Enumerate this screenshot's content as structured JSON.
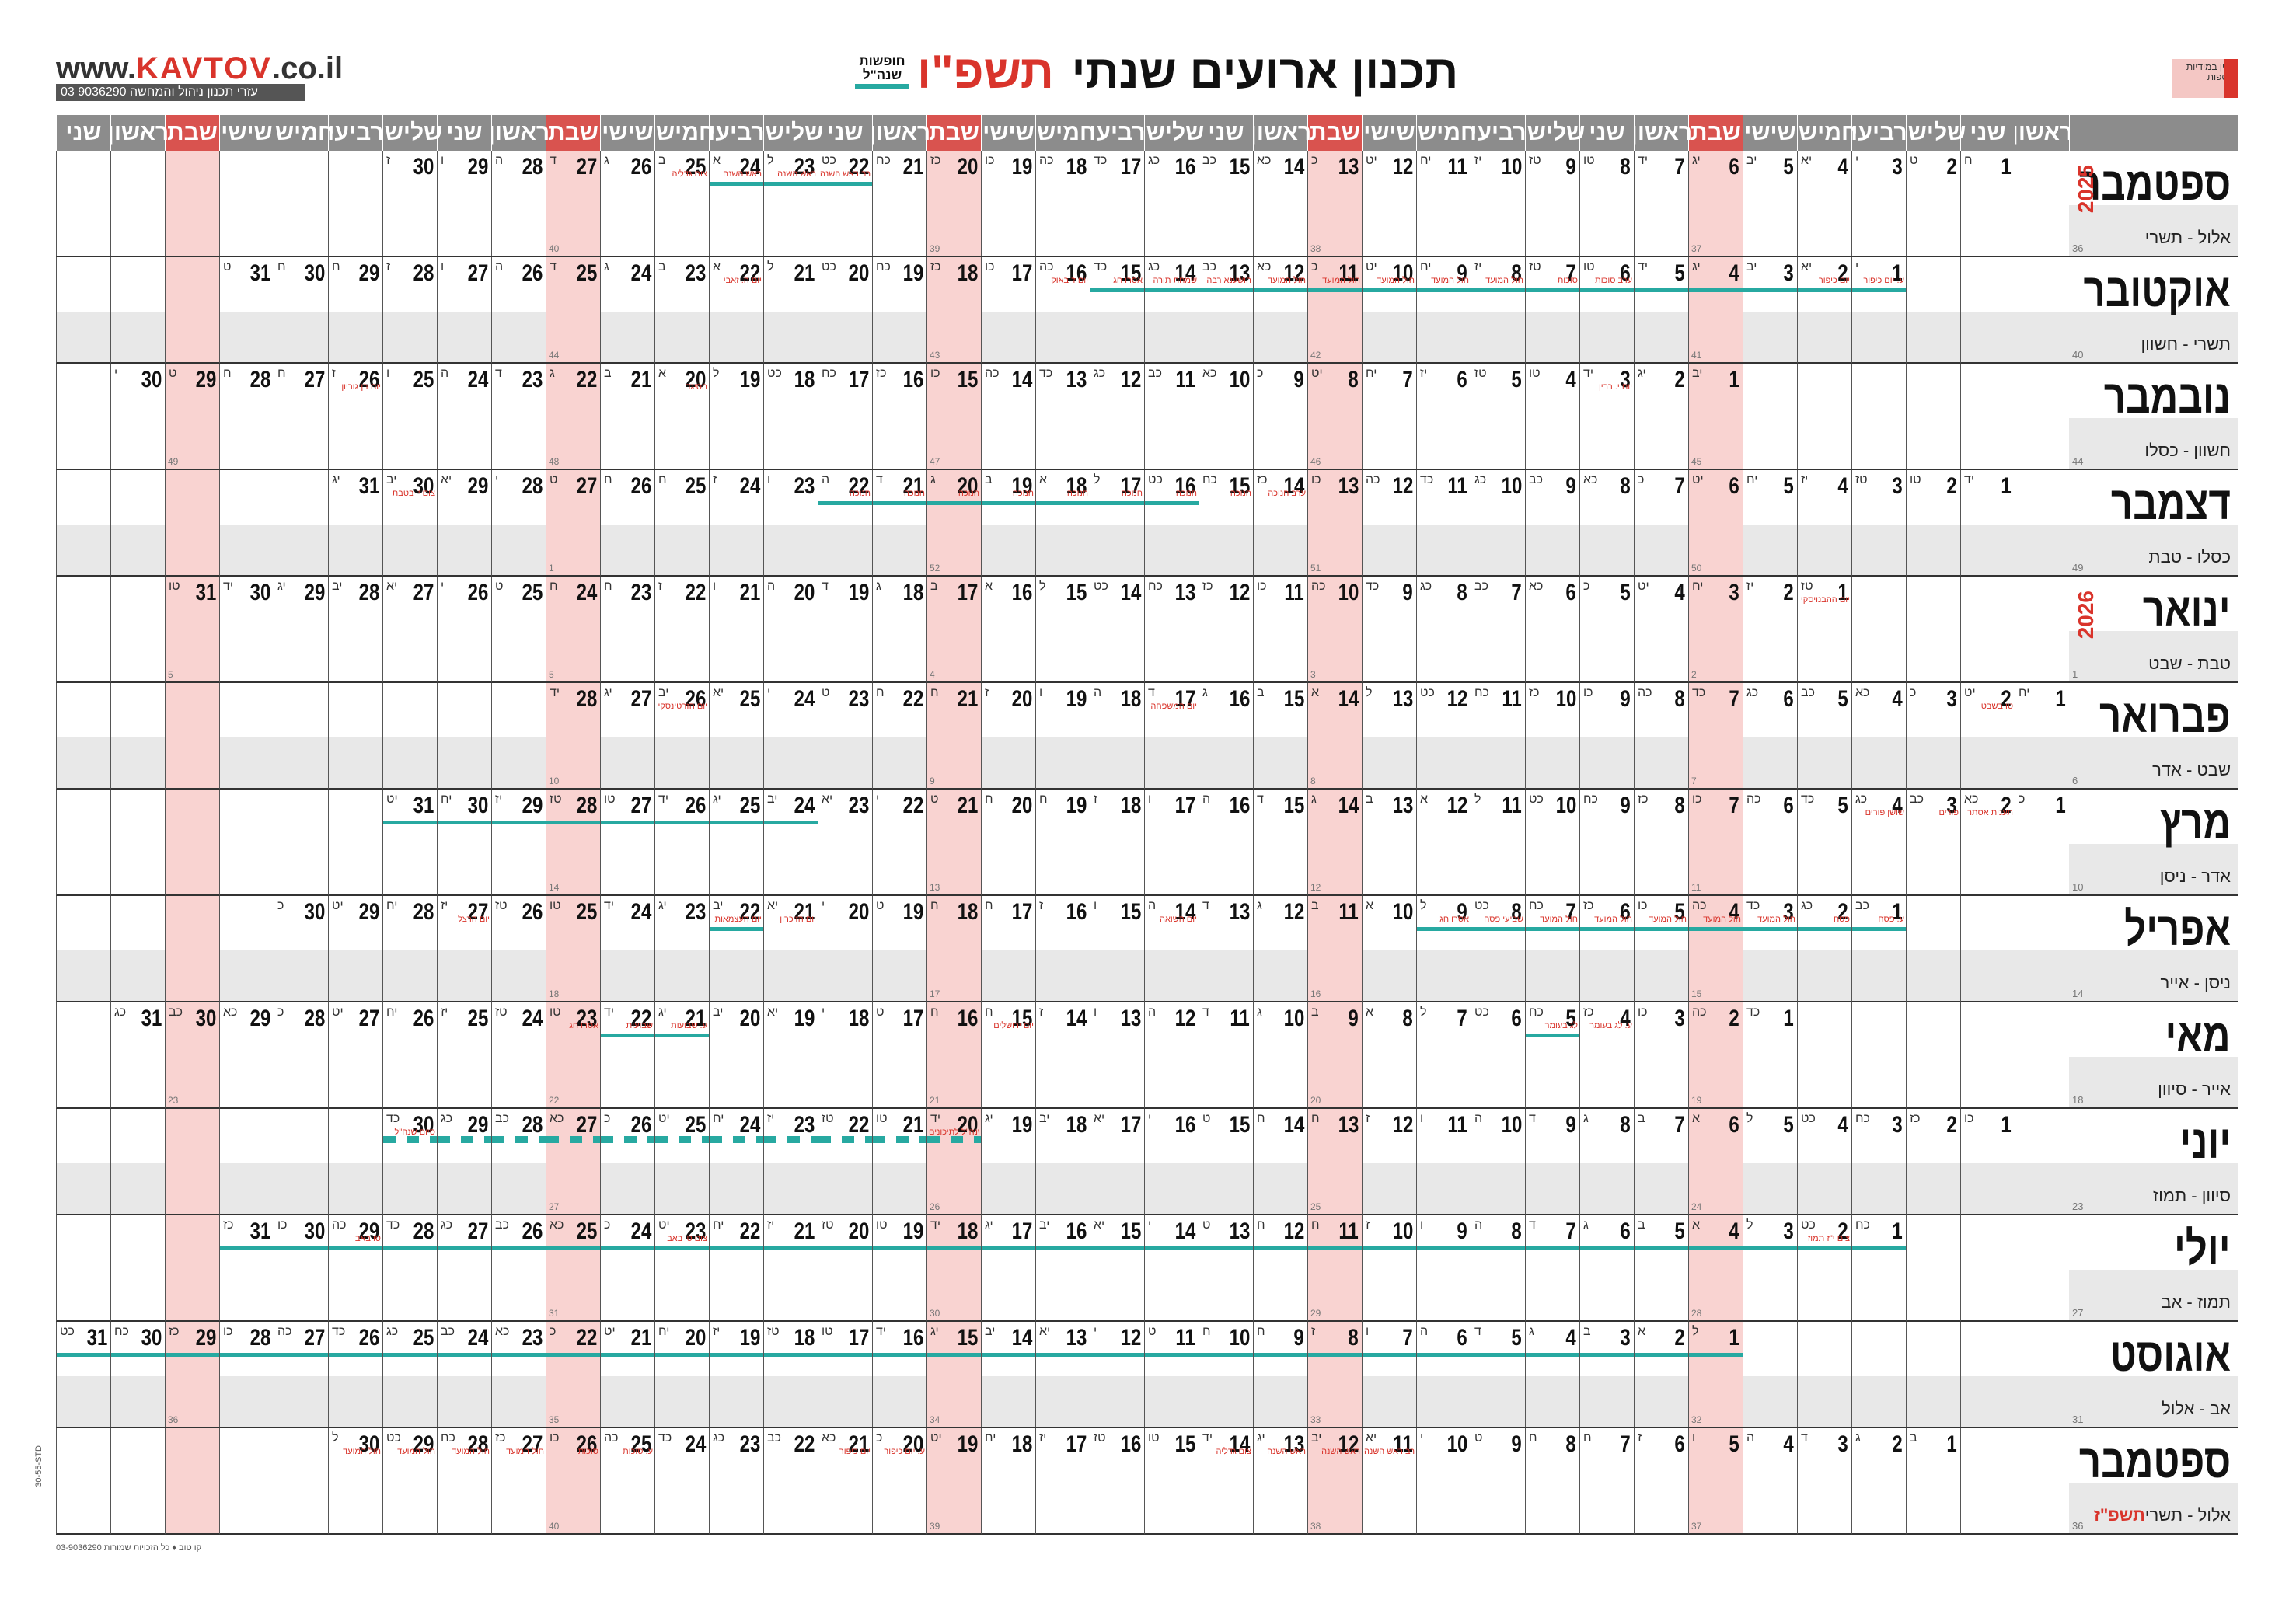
{
  "header": {
    "title": "תכנון ארועים שנתי",
    "year_label": "תשפ\"ו",
    "legend_label": "חופשות שנה\"ל",
    "logo_prefix": "www.",
    "logo_brand": "KAVTOV",
    "logo_suffix": ".co.il",
    "phone_text": "03 9036290 עזרי תכנון ניהול והמחשה",
    "publisher_text": "זמין במידיות נוספות",
    "side_code": "30-55-STD",
    "footer_text": "03-9036290 קו טוב ♦ כל הזכויות שמורות"
  },
  "colors": {
    "accent": "#27a9a1",
    "shabbat": "#f9d3d1",
    "header_gray": "#8c8c8c",
    "header_shabbat": "#d9534f",
    "event_red": "#d9342b"
  },
  "weekdays": [
    "ראשון",
    "שני",
    "שלישי",
    "רביעי",
    "חמישי",
    "שישי",
    "שבת",
    "ראשון",
    "שני",
    "שלישי",
    "רביעי",
    "חמישי",
    "שישי",
    "שבת",
    "ראשון",
    "שני",
    "שלישי",
    "רביעי",
    "חמישי",
    "שישי",
    "שבת",
    "ראשון",
    "שני",
    "שלישי",
    "רביעי",
    "חמישי",
    "שישי",
    "שבת",
    "ראשון",
    "שני",
    "שלישי",
    "רביעי",
    "חמישי",
    "שישי",
    "שבת",
    "ראשון",
    "שני"
  ],
  "months": [
    {
      "name": "ספטמבר",
      "hebrew": "אלול - תשרי",
      "year_mark": "2025",
      "start": 1,
      "days": 30,
      "week_num": "36",
      "weeks": {
        "6": "37",
        "13": "38",
        "20": "39",
        "27": "40"
      }
    },
    {
      "name": "אוקטובר",
      "hebrew": "תשרי - חשוון",
      "start": 3,
      "days": 31,
      "week_num": "40",
      "weeks": {
        "4": "41",
        "11": "42",
        "18": "43",
        "25": "44"
      }
    },
    {
      "name": "נובמבר",
      "hebrew": "חשוון - כסלו",
      "start": 6,
      "days": 30,
      "week_num": "44",
      "weeks": {
        "1": "45",
        "8": "46",
        "15": "47",
        "22": "48",
        "29": "49"
      }
    },
    {
      "name": "דצמבר",
      "hebrew": "כסלו - טבת",
      "start": 1,
      "days": 31,
      "week_num": "49",
      "weeks": {
        "6": "50",
        "13": "51",
        "20": "52",
        "27": "1"
      }
    },
    {
      "name": "ינואר",
      "hebrew": "טבת - שבט",
      "year_mark": "2026",
      "start": 4,
      "days": 31,
      "week_num": "1",
      "weeks": {
        "3": "2",
        "10": "3",
        "17": "4",
        "24": "5",
        "31": "5"
      }
    },
    {
      "name": "פברואר",
      "hebrew": "שבט - אדר",
      "start": 0,
      "days": 28,
      "week_num": "6",
      "weeks": {
        "7": "7",
        "14": "8",
        "21": "9",
        "28": "10"
      }
    },
    {
      "name": "מרץ",
      "hebrew": "אדר - ניסן",
      "start": 0,
      "days": 31,
      "week_num": "10",
      "weeks": {
        "7": "11",
        "14": "12",
        "21": "13",
        "28": "14"
      }
    },
    {
      "name": "אפריל",
      "hebrew": "ניסן - אייר",
      "start": 3,
      "days": 30,
      "week_num": "14",
      "weeks": {
        "4": "15",
        "11": "16",
        "18": "17",
        "25": "18"
      }
    },
    {
      "name": "מאי",
      "hebrew": "אייר - סיוון",
      "start": 5,
      "days": 31,
      "week_num": "18",
      "weeks": {
        "2": "19",
        "9": "20",
        "16": "21",
        "23": "22",
        "30": "23"
      }
    },
    {
      "name": "יוני",
      "hebrew": "סיוון - תמוז",
      "start": 1,
      "days": 30,
      "week_num": "23",
      "weeks": {
        "6": "24",
        "13": "25",
        "20": "26",
        "27": "27"
      }
    },
    {
      "name": "יולי",
      "hebrew": "תמוז - אב",
      "start": 3,
      "days": 31,
      "week_num": "27",
      "weeks": {
        "4": "28",
        "11": "29",
        "18": "30",
        "25": "31"
      }
    },
    {
      "name": "אוגוסט",
      "hebrew": "אב - אלול",
      "start": 6,
      "days": 31,
      "week_num": "31",
      "weeks": {
        "1": "32",
        "8": "33",
        "15": "34",
        "22": "35",
        "29": "36"
      }
    },
    {
      "name": "ספטמבר",
      "hebrew": "אלול - תשרי",
      "hebrew_red": "תשפ\"ז",
      "start": 2,
      "days": 30,
      "week_num": "36",
      "weeks": {
        "5": "37",
        "12": "38",
        "19": "39",
        "26": "40"
      }
    }
  ],
  "events": [
    {
      "m": 0,
      "d": 22,
      "t": "ערב ראש השנה"
    },
    {
      "m": 0,
      "d": 23,
      "t": "ראש השנה"
    },
    {
      "m": 0,
      "d": 24,
      "t": "ראש השנה"
    },
    {
      "m": 0,
      "d": 25,
      "t": "צום גדליה"
    },
    {
      "m": 1,
      "d": 1,
      "t": "ע. יום כיפור"
    },
    {
      "m": 1,
      "d": 2,
      "t": "יום כיפור"
    },
    {
      "m": 1,
      "d": 6,
      "t": "ערב סוכות"
    },
    {
      "m": 1,
      "d": 7,
      "t": "סוכות"
    },
    {
      "m": 1,
      "d": 8,
      "t": "חול המועד"
    },
    {
      "m": 1,
      "d": 9,
      "t": "חול המועד"
    },
    {
      "m": 1,
      "d": 10,
      "t": "חול המועד"
    },
    {
      "m": 1,
      "d": 11,
      "t": "חול המועד"
    },
    {
      "m": 1,
      "d": 12,
      "t": "חול המועד"
    },
    {
      "m": 1,
      "d": 13,
      "t": "הושענא רבה"
    },
    {
      "m": 1,
      "d": 14,
      "t": "שמחת תורה"
    },
    {
      "m": 1,
      "d": 15,
      "t": "אסרו חג"
    },
    {
      "m": 1,
      "d": 16,
      "t": "יום ז' באוק"
    },
    {
      "m": 1,
      "d": 22,
      "t": "יום ה. זאבי"
    },
    {
      "m": 2,
      "d": 3,
      "t": "יום י. רבין"
    },
    {
      "m": 2,
      "d": 20,
      "t": "הסיגד"
    },
    {
      "m": 2,
      "d": 26,
      "t": "יום בן גוריון"
    },
    {
      "m": 3,
      "d": 14,
      "t": "ערב חנוכה"
    },
    {
      "m": 3,
      "d": 15,
      "t": "חנוכה"
    },
    {
      "m": 3,
      "d": 16,
      "t": "חנוכה"
    },
    {
      "m": 3,
      "d": 17,
      "t": "חנוכה"
    },
    {
      "m": 3,
      "d": 18,
      "t": "חנוכה"
    },
    {
      "m": 3,
      "d": 19,
      "t": "חנוכה"
    },
    {
      "m": 3,
      "d": 20,
      "t": "חנוכה"
    },
    {
      "m": 3,
      "d": 21,
      "t": "חנוכה"
    },
    {
      "m": 3,
      "d": 22,
      "t": "חנוכה"
    },
    {
      "m": 3,
      "d": 30,
      "t": "צום י' בטבת"
    },
    {
      "m": 4,
      "d": 1,
      "t": "יום ההבנויסקי"
    },
    {
      "m": 5,
      "d": 2,
      "t": "טו בשבט"
    },
    {
      "m": 5,
      "d": 17,
      "t": "יום המשפחה"
    },
    {
      "m": 5,
      "d": 26,
      "t": "יום הזרטינסקי"
    },
    {
      "m": 6,
      "d": 2,
      "t": "תענית אסתר"
    },
    {
      "m": 6,
      "d": 3,
      "t": "פורים"
    },
    {
      "m": 6,
      "d": 4,
      "t": "שושן פורים"
    },
    {
      "m": 7,
      "d": 1,
      "t": "ע. פסח"
    },
    {
      "m": 7,
      "d": 2,
      "t": "פסח"
    },
    {
      "m": 7,
      "d": 3,
      "t": "חול המועד"
    },
    {
      "m": 7,
      "d": 4,
      "t": "חול המועד"
    },
    {
      "m": 7,
      "d": 5,
      "t": "חול המועד"
    },
    {
      "m": 7,
      "d": 6,
      "t": "חול המועד"
    },
    {
      "m": 7,
      "d": 7,
      "t": "חול המועד"
    },
    {
      "m": 7,
      "d": 8,
      "t": "שביעי פסח"
    },
    {
      "m": 7,
      "d": 9,
      "t": "אסרו חג"
    },
    {
      "m": 7,
      "d": 14,
      "t": "יום השואה"
    },
    {
      "m": 7,
      "d": 21,
      "t": "יום הזיכרון"
    },
    {
      "m": 7,
      "d": 22,
      "t": "יום העצמאות"
    },
    {
      "m": 7,
      "d": 27,
      "t": "יום הרצל"
    },
    {
      "m": 8,
      "d": 4,
      "t": "ע. לג בעומר"
    },
    {
      "m": 8,
      "d": 5,
      "t": "לג בעומר"
    },
    {
      "m": 8,
      "d": 15,
      "t": "יום ירושלים"
    },
    {
      "m": 8,
      "d": 21,
      "t": "ע. שבועות"
    },
    {
      "m": 8,
      "d": 22,
      "t": "שבועות"
    },
    {
      "m": 8,
      "d": 23,
      "t": "אסרו חג"
    },
    {
      "m": 9,
      "d": 20,
      "t": "סיום שנה\"ל לתיכונים"
    },
    {
      "m": 9,
      "d": 30,
      "t": "סיום שנה\"ל"
    },
    {
      "m": 10,
      "d": 2,
      "t": "צום י\"ז תמוז"
    },
    {
      "m": 10,
      "d": 23,
      "t": "צום ט' באב"
    },
    {
      "m": 10,
      "d": 29,
      "t": "טו באב"
    },
    {
      "m": 12,
      "d": 11,
      "t": "ערב ראש השנה"
    },
    {
      "m": 12,
      "d": 12,
      "t": "ראש השנה"
    },
    {
      "m": 12,
      "d": 13,
      "t": "ראש השנה"
    },
    {
      "m": 12,
      "d": 14,
      "t": "צום גדליה"
    },
    {
      "m": 12,
      "d": 20,
      "t": "ע. יום כיפור"
    },
    {
      "m": 12,
      "d": 21,
      "t": "יום כיפור"
    },
    {
      "m": 12,
      "d": 25,
      "t": "ע. סוכות"
    },
    {
      "m": 12,
      "d": 26,
      "t": "סוכות"
    },
    {
      "m": 12,
      "d": 27,
      "t": "חול המועד"
    },
    {
      "m": 12,
      "d": 28,
      "t": "חול המועד"
    },
    {
      "m": 12,
      "d": 29,
      "t": "חול המועד"
    },
    {
      "m": 12,
      "d": 30,
      "t": "חול המועד"
    }
  ],
  "vacations": [
    {
      "m": 0,
      "from": 22,
      "to": 24
    },
    {
      "m": 1,
      "from": 1,
      "to": 15
    },
    {
      "m": 3,
      "from": 16,
      "to": 22
    },
    {
      "m": 6,
      "from": 24,
      "to": 31
    },
    {
      "m": 7,
      "from": 1,
      "to": 9
    },
    {
      "m": 7,
      "from": 22,
      "to": 22
    },
    {
      "m": 8,
      "from": 5,
      "to": 5
    },
    {
      "m": 8,
      "from": 21,
      "to": 22
    },
    {
      "m": 9,
      "from": 20,
      "to": 30,
      "dashed": true
    },
    {
      "m": 10,
      "from": 1,
      "to": 31
    },
    {
      "m": 11,
      "from": 1,
      "to": 31
    }
  ],
  "hebrew_dates": [
    "ח",
    "ט",
    "י",
    "יא",
    "יב",
    "יג",
    "יד",
    "טו",
    "טז",
    "יז",
    "יח",
    "יט",
    "כ",
    "כא",
    "כב",
    "כג",
    "כד",
    "כה",
    "כו",
    "כז",
    "כח",
    "כט",
    "ל",
    "א",
    "ב",
    "ג",
    "ד",
    "ה",
    "ו",
    "ז",
    "ח"
  ]
}
